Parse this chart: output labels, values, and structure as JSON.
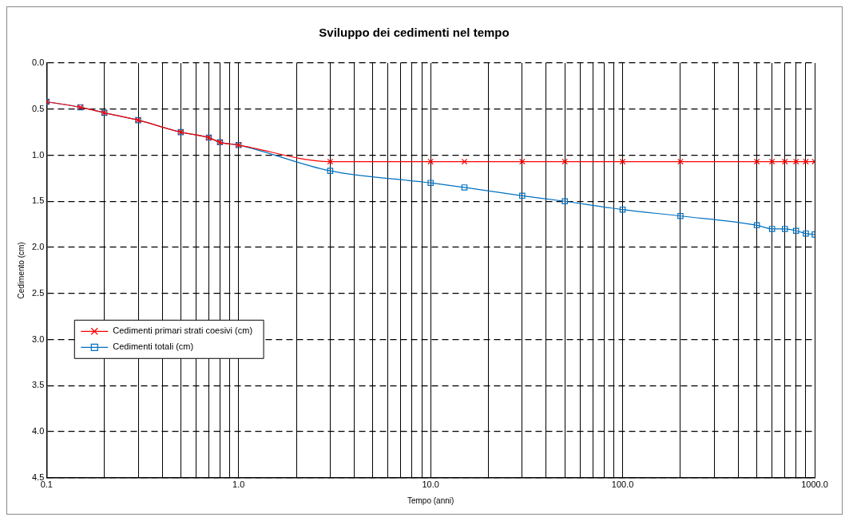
{
  "chart_data": {
    "type": "line",
    "title": "Sviluppo dei cedimenti nel tempo",
    "xlabel": "Tempo (anni)",
    "ylabel": "Cedimento (cm)",
    "x": [
      0.1,
      0.15,
      0.2,
      0.3,
      0.5,
      0.7,
      0.8,
      1,
      3,
      10,
      15,
      30,
      50,
      100,
      200,
      500,
      600,
      700,
      800,
      900,
      1000
    ],
    "series": [
      {
        "name": "Cedimenti primari strati coesivi (cm)",
        "color": "#ff0000",
        "marker": "cross",
        "values": [
          0.42,
          0.48,
          0.54,
          0.62,
          0.75,
          0.81,
          0.86,
          0.89,
          1.07,
          1.07,
          1.07,
          1.07,
          1.07,
          1.07,
          1.07,
          1.07,
          1.07,
          1.07,
          1.07,
          1.07,
          1.07
        ]
      },
      {
        "name": "Cedimenti totali (cm)",
        "color": "#0070c0",
        "marker": "square",
        "values": [
          0.42,
          0.48,
          0.54,
          0.62,
          0.75,
          0.81,
          0.86,
          0.89,
          1.17,
          1.3,
          1.35,
          1.44,
          1.5,
          1.59,
          1.66,
          1.76,
          1.8,
          1.8,
          1.82,
          1.85,
          1.86
        ]
      }
    ],
    "log": "x",
    "xlim": [
      0.1,
      1000
    ],
    "ylim": [
      4.5,
      0
    ],
    "xticks": [
      {
        "value": 0.1,
        "label": "0.1"
      },
      {
        "value": 0.2,
        "label": null
      },
      {
        "value": 0.3,
        "label": null
      },
      {
        "value": 0.4,
        "label": null
      },
      {
        "value": 0.5,
        "label": null
      },
      {
        "value": 0.6,
        "label": null
      },
      {
        "value": 0.7,
        "label": null
      },
      {
        "value": 0.8,
        "label": null
      },
      {
        "value": 0.9,
        "label": null
      },
      {
        "value": 1,
        "label": "1.0"
      },
      {
        "value": 2,
        "label": null
      },
      {
        "value": 3,
        "label": null
      },
      {
        "value": 4,
        "label": null
      },
      {
        "value": 5,
        "label": null
      },
      {
        "value": 6,
        "label": null
      },
      {
        "value": 7,
        "label": null
      },
      {
        "value": 8,
        "label": null
      },
      {
        "value": 9,
        "label": null
      },
      {
        "value": 10,
        "label": "10.0"
      },
      {
        "value": 20,
        "label": null
      },
      {
        "value": 30,
        "label": null
      },
      {
        "value": 40,
        "label": null
      },
      {
        "value": 50,
        "label": null
      },
      {
        "value": 60,
        "label": null
      },
      {
        "value": 70,
        "label": null
      },
      {
        "value": 80,
        "label": null
      },
      {
        "value": 90,
        "label": null
      },
      {
        "value": 100,
        "label": "100.0"
      },
      {
        "value": 200,
        "label": null
      },
      {
        "value": 300,
        "label": null
      },
      {
        "value": 400,
        "label": null
      },
      {
        "value": 500,
        "label": null
      },
      {
        "value": 600,
        "label": null
      },
      {
        "value": 700,
        "label": null
      },
      {
        "value": 800,
        "label": null
      },
      {
        "value": 900,
        "label": null
      },
      {
        "value": 1000,
        "label": "1000.0"
      }
    ],
    "yticks": [
      {
        "value": 0,
        "label": "0.0"
      },
      {
        "value": 0.5,
        "label": "0.5"
      },
      {
        "value": 1,
        "label": "1.0"
      },
      {
        "value": 1.5,
        "label": "1.5"
      },
      {
        "value": 2,
        "label": "2.0"
      },
      {
        "value": 2.5,
        "label": "2.5"
      },
      {
        "value": 3,
        "label": "3.0"
      },
      {
        "value": 3.5,
        "label": "3.5"
      },
      {
        "value": 4,
        "label": "4.0"
      },
      {
        "value": 4.5,
        "label": "4.5"
      }
    ],
    "grid": true,
    "legend": "left"
  }
}
